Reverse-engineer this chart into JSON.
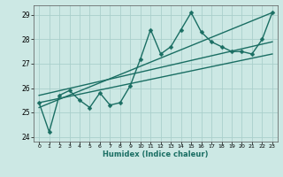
{
  "title": "",
  "xlabel": "Humidex (Indice chaleur)",
  "ylabel": "",
  "bg_color": "#cce8e4",
  "grid_color": "#aacfcb",
  "line_color": "#1a6e63",
  "xlim": [
    -0.5,
    23.5
  ],
  "ylim": [
    23.8,
    29.4
  ],
  "yticks": [
    24,
    25,
    26,
    27,
    28,
    29
  ],
  "xticks": [
    0,
    1,
    2,
    3,
    4,
    5,
    6,
    7,
    8,
    9,
    10,
    11,
    12,
    13,
    14,
    15,
    16,
    17,
    18,
    19,
    20,
    21,
    22,
    23
  ],
  "main_x": [
    0,
    1,
    2,
    3,
    4,
    5,
    6,
    7,
    8,
    9,
    10,
    11,
    12,
    13,
    14,
    15,
    16,
    17,
    18,
    19,
    20,
    21,
    22,
    23
  ],
  "main_y": [
    25.4,
    24.2,
    25.7,
    25.9,
    25.5,
    25.2,
    25.8,
    25.3,
    25.4,
    26.1,
    27.2,
    28.4,
    27.4,
    27.7,
    28.4,
    29.1,
    28.3,
    27.9,
    27.7,
    27.5,
    27.5,
    27.4,
    28.0,
    29.1
  ],
  "line1_x": [
    0,
    23
  ],
  "line1_y": [
    25.4,
    27.4
  ],
  "line2_x": [
    0,
    23
  ],
  "line2_y": [
    25.7,
    27.9
  ],
  "line3_x": [
    0,
    23
  ],
  "line3_y": [
    25.2,
    29.1
  ],
  "marker_size": 2.5,
  "line_width": 1.0
}
